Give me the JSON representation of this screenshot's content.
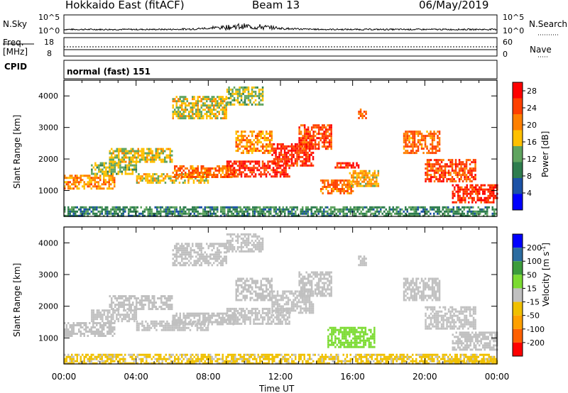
{
  "header": {
    "radar": "Hokkaido East (fitACF)",
    "beam": "Beam 13",
    "date": "06/May/2019"
  },
  "top_panel": {
    "nsky_label": "N.Sky",
    "nsky_ticks": [
      "10^5",
      "10^0"
    ],
    "nsearch_label": "N.Search",
    "nsearch_ticks": [
      "10^5",
      "10^0"
    ],
    "freq_label": "Freq.",
    "freq_unit": "[MHz]",
    "freq_ticks": [
      "18",
      "8"
    ],
    "nave_label": "Nave",
    "nave_ticks": [
      "60",
      "0"
    ],
    "cpid_label": "CPID",
    "cpid_value": "normal (fast) 151"
  },
  "chart_data": [
    {
      "type": "heatmap",
      "title": "",
      "ylabel": "Slant Range [km]",
      "xlabel": "",
      "x_ticks": [
        "00:00",
        "04:00",
        "08:00",
        "12:00",
        "16:00",
        "20:00",
        "00:00"
      ],
      "y_ticks": [
        1000,
        2000,
        3000,
        4000
      ],
      "xlim_hours": [
        0,
        24
      ],
      "ylim_km": [
        180,
        4500
      ],
      "colorbar": {
        "label": "Power [dB]",
        "ticks": [
          4,
          8,
          12,
          16,
          20,
          24,
          28
        ],
        "range": [
          0,
          30
        ],
        "colors": [
          "#0000ff",
          "#1c52a6",
          "#2e7d4e",
          "#5fa45f",
          "#ffc000",
          "#ff8000",
          "#ff4000",
          "#ff0000"
        ]
      },
      "regions": [
        {
          "t0": 0.0,
          "t1": 2.8,
          "r0": 1050,
          "r1": 1500,
          "value": 20
        },
        {
          "t0": 1.5,
          "t1": 4.0,
          "r0": 1500,
          "r1": 1900,
          "value": 14
        },
        {
          "t0": 2.5,
          "t1": 6.0,
          "r0": 1900,
          "r1": 2350,
          "value": 16
        },
        {
          "t0": 4.0,
          "t1": 8.0,
          "r0": 1250,
          "r1": 1550,
          "value": 16
        },
        {
          "t0": 6.0,
          "t1": 9.5,
          "r0": 1450,
          "r1": 1800,
          "value": 22
        },
        {
          "t0": 9.0,
          "t1": 12.5,
          "r0": 1450,
          "r1": 1950,
          "value": 26
        },
        {
          "t0": 11.5,
          "t1": 13.8,
          "r0": 1800,
          "r1": 2500,
          "value": 26
        },
        {
          "t0": 13.0,
          "t1": 14.8,
          "r0": 2300,
          "r1": 3100,
          "value": 24
        },
        {
          "t0": 6.0,
          "t1": 9.0,
          "r0": 3300,
          "r1": 4000,
          "value": 16
        },
        {
          "t0": 9.0,
          "t1": 11.0,
          "r0": 3700,
          "r1": 4300,
          "value": 14
        },
        {
          "t0": 9.5,
          "t1": 11.5,
          "r0": 2200,
          "r1": 2900,
          "value": 20
        },
        {
          "t0": 14.2,
          "t1": 16.0,
          "r0": 900,
          "r1": 1350,
          "value": 22
        },
        {
          "t0": 15.8,
          "t1": 17.4,
          "r0": 1150,
          "r1": 1650,
          "value": 18
        },
        {
          "t0": 15.0,
          "t1": 16.3,
          "r0": 1700,
          "r1": 1900,
          "value": 26
        },
        {
          "t0": 18.8,
          "t1": 20.8,
          "r0": 2200,
          "r1": 2900,
          "value": 22
        },
        {
          "t0": 20.0,
          "t1": 22.8,
          "r0": 1300,
          "r1": 2000,
          "value": 24
        },
        {
          "t0": 21.5,
          "t1": 24.0,
          "r0": 650,
          "r1": 1200,
          "value": 26
        },
        {
          "t0": 16.3,
          "t1": 16.7,
          "r0": 3300,
          "r1": 3600,
          "value": 22
        },
        {
          "t0": 0.0,
          "t1": 24.0,
          "r0": 180,
          "r1": 500,
          "value": 10
        }
      ]
    },
    {
      "type": "heatmap",
      "title": "",
      "ylabel": "Slant Range [km]",
      "xlabel": "Time UT",
      "x_ticks": [
        "00:00",
        "04:00",
        "08:00",
        "12:00",
        "16:00",
        "20:00",
        "00:00"
      ],
      "y_ticks": [
        1000,
        2000,
        3000,
        4000
      ],
      "xlim_hours": [
        0,
        24
      ],
      "ylim_km": [
        180,
        4500
      ],
      "colorbar": {
        "label": "Velocity [m s^-1]",
        "ticks": [
          200,
          100,
          50,
          15,
          -15,
          -50,
          -100,
          -200
        ],
        "range": [
          -250,
          250
        ],
        "colors": [
          "#ff0000",
          "#ff6000",
          "#ffa000",
          "#f0c000",
          "#c0c0c0",
          "#7cdb32",
          "#3c9c3c",
          "#2c6ca0",
          "#0000ff"
        ]
      },
      "regions": [
        {
          "t0": 0.0,
          "t1": 2.8,
          "r0": 1050,
          "r1": 1500,
          "value": 0
        },
        {
          "t0": 1.5,
          "t1": 4.0,
          "r0": 1500,
          "r1": 1900,
          "value": 0
        },
        {
          "t0": 2.5,
          "t1": 6.0,
          "r0": 1900,
          "r1": 2350,
          "value": 0
        },
        {
          "t0": 4.0,
          "t1": 8.0,
          "r0": 1250,
          "r1": 1550,
          "value": 0
        },
        {
          "t0": 6.0,
          "t1": 9.5,
          "r0": 1450,
          "r1": 1800,
          "value": 0
        },
        {
          "t0": 9.0,
          "t1": 12.5,
          "r0": 1450,
          "r1": 1950,
          "value": 0
        },
        {
          "t0": 11.5,
          "t1": 13.8,
          "r0": 1800,
          "r1": 2500,
          "value": 0
        },
        {
          "t0": 13.0,
          "t1": 14.8,
          "r0": 2300,
          "r1": 3100,
          "value": 0
        },
        {
          "t0": 6.0,
          "t1": 9.0,
          "r0": 3300,
          "r1": 4000,
          "value": 0
        },
        {
          "t0": 9.0,
          "t1": 11.0,
          "r0": 3700,
          "r1": 4300,
          "value": 0
        },
        {
          "t0": 9.5,
          "t1": 11.5,
          "r0": 2200,
          "r1": 2900,
          "value": 0
        },
        {
          "t0": 14.6,
          "t1": 17.2,
          "r0": 700,
          "r1": 1350,
          "value": 40
        },
        {
          "t0": 18.8,
          "t1": 20.8,
          "r0": 2200,
          "r1": 2900,
          "value": 0
        },
        {
          "t0": 20.0,
          "t1": 22.8,
          "r0": 1300,
          "r1": 2000,
          "value": 0
        },
        {
          "t0": 21.5,
          "t1": 24.0,
          "r0": 650,
          "r1": 1200,
          "value": 0
        },
        {
          "t0": 21.0,
          "t1": 24.0,
          "r0": 200,
          "r1": 300,
          "value": -80
        },
        {
          "t0": 16.3,
          "t1": 16.7,
          "r0": 3300,
          "r1": 3600,
          "value": 0
        },
        {
          "t0": 0.0,
          "t1": 24.0,
          "r0": 180,
          "r1": 500,
          "value": -30
        }
      ]
    }
  ]
}
